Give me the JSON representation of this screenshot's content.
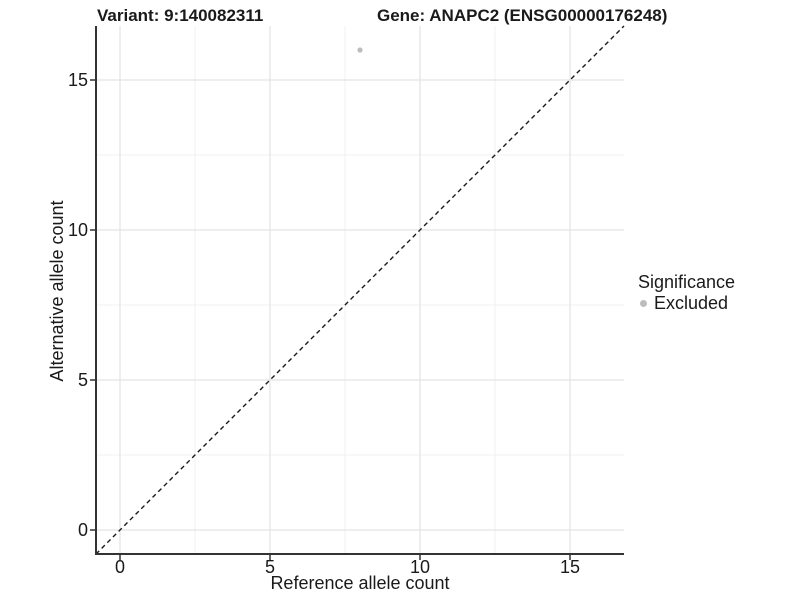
{
  "title": {
    "variant": "Variant: 9:140082311",
    "gene": "Gene: ANAPC2 (ENSG00000176248)"
  },
  "axes": {
    "x": {
      "label": "Reference allele count",
      "tick_labels": [
        "0",
        "5",
        "10",
        "15"
      ]
    },
    "y": {
      "label": "Alternative allele count",
      "tick_labels": [
        "0",
        "5",
        "10",
        "15"
      ]
    }
  },
  "legend": {
    "title": "Significance",
    "items": [
      {
        "label": "Excluded",
        "color": "#bdbdbd"
      }
    ]
  },
  "colors": {
    "point": "#bdbdbd",
    "grid_major": "#e3e3e3",
    "grid_minor": "#f0f0f0",
    "axis_line": "#333333",
    "identity_line": "#1a1a1a",
    "text": "#1a1a1a",
    "background": "#ffffff"
  },
  "chart_data": {
    "type": "scatter",
    "title": "Variant: 9:140082311   Gene: ANAPC2 (ENSG00000176248)",
    "xlabel": "Reference allele count",
    "ylabel": "Alternative allele count",
    "xlim": [
      -0.8,
      16.8
    ],
    "ylim": [
      -0.8,
      16.8
    ],
    "x_ticks": [
      0,
      5,
      10,
      15
    ],
    "y_ticks": [
      0,
      5,
      10,
      15
    ],
    "x_minor_ticks": [
      2.5,
      7.5,
      12.5
    ],
    "y_minor_ticks": [
      2.5,
      7.5,
      12.5
    ],
    "grid": "on",
    "legend_position": "right",
    "series": [
      {
        "name": "Excluded",
        "color": "#bdbdbd",
        "points": [
          {
            "x": 8,
            "y": 16
          }
        ]
      }
    ],
    "reference_line": {
      "style": "dashed",
      "slope": 1,
      "intercept": 0
    }
  }
}
